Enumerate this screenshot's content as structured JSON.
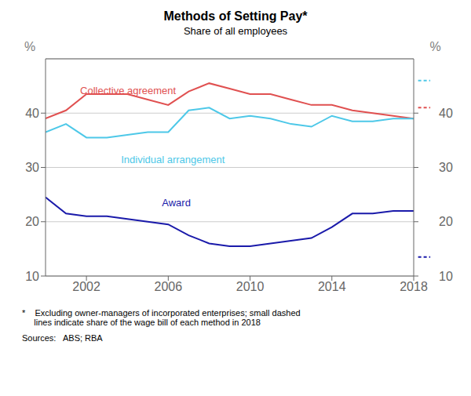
{
  "chart_data": {
    "type": "line",
    "title": "Methods of Setting Pay*",
    "subtitle": "Share of all employees",
    "footnote": "*    Excluding owner-managers of incorporated enterprises; small dashed\n     lines indicate share of the wage bill of each method in 2018",
    "sources": "Sources:   ABS; RBA",
    "ylabel": "%",
    "y2label": "%",
    "x": [
      2000,
      2001,
      2002,
      2003,
      2004,
      2005,
      2006,
      2007,
      2008,
      2009,
      2010,
      2011,
      2012,
      2013,
      2014,
      2015,
      2016,
      2017,
      2018
    ],
    "series": [
      {
        "name": "Collective agreement",
        "color": "#e05050",
        "values": [
          39.0,
          40.5,
          43.5,
          43.5,
          43.5,
          42.5,
          41.5,
          44.0,
          45.5,
          44.5,
          43.5,
          43.5,
          42.5,
          41.5,
          41.5,
          40.5,
          40.0,
          39.5,
          39.0
        ],
        "wage_bill_share_2018": 41.0
      },
      {
        "name": "Individual arrangement",
        "color": "#4dc8e8",
        "values": [
          36.5,
          38.0,
          35.5,
          35.5,
          36.0,
          36.5,
          36.5,
          40.5,
          41.0,
          39.0,
          39.5,
          39.0,
          38.0,
          37.5,
          39.5,
          38.5,
          38.5,
          39.0,
          39.0
        ],
        "wage_bill_share_2018": 46.0
      },
      {
        "name": "Award",
        "color": "#1a1aaa",
        "values": [
          24.5,
          21.5,
          21.0,
          21.0,
          20.5,
          20.0,
          19.5,
          17.5,
          16.0,
          15.5,
          15.5,
          16.0,
          16.5,
          17.0,
          19.0,
          21.5,
          21.5,
          22.0,
          22.0
        ],
        "wage_bill_share_2018": 13.5
      }
    ],
    "xlim": [
      2000,
      2018
    ],
    "xticks": [
      2002,
      2006,
      2010,
      2014,
      2018
    ],
    "ylim": [
      10,
      50
    ],
    "yticks": [
      10,
      20,
      30,
      40
    ],
    "y2lim": [
      10,
      50
    ],
    "y2ticks": [
      10,
      20,
      30,
      40
    ],
    "grid": true
  }
}
